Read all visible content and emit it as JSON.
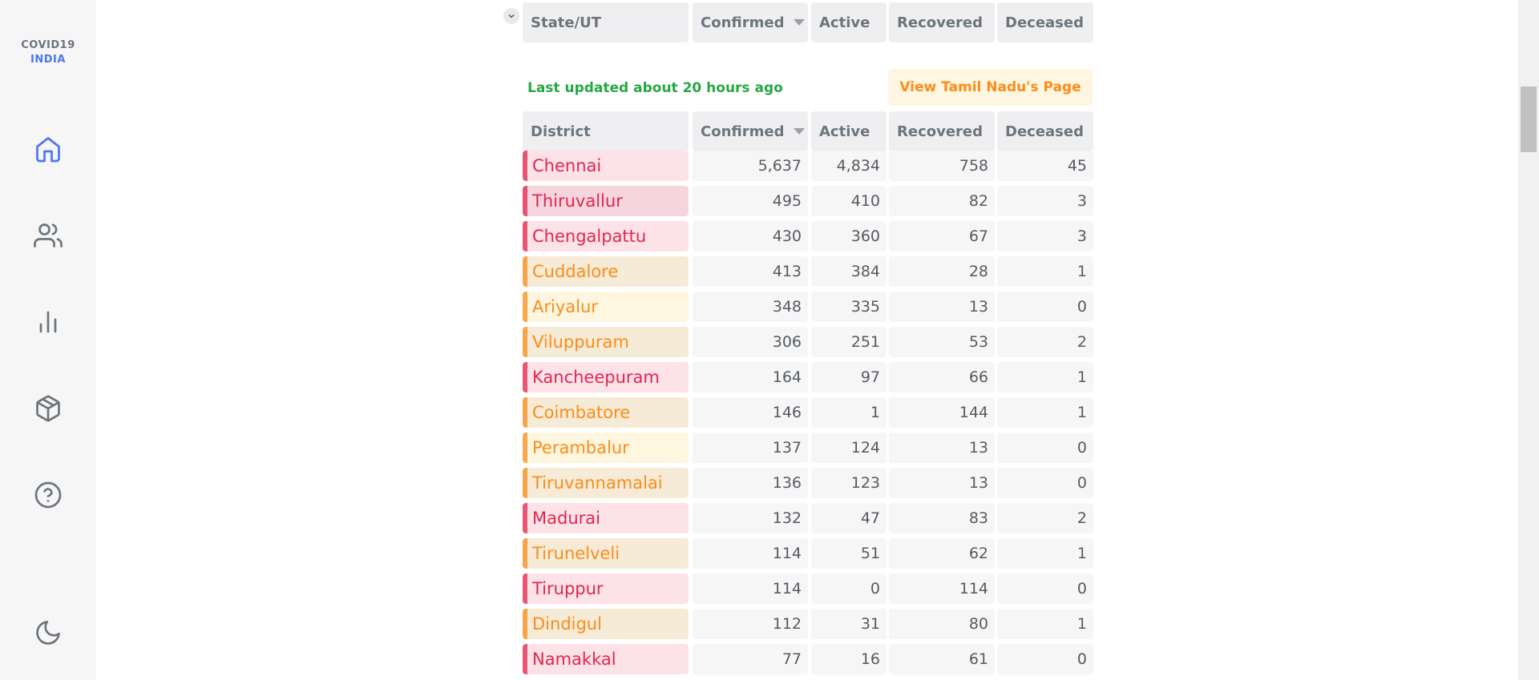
{
  "app": {
    "logo_line1": "COVID19",
    "logo_line2": "INDIA"
  },
  "sidebar": {
    "items": [
      {
        "icon": "home-icon"
      },
      {
        "icon": "users-icon"
      },
      {
        "icon": "bar-chart-icon"
      },
      {
        "icon": "box-icon"
      },
      {
        "icon": "help-circle-icon"
      },
      {
        "icon": "moon-icon"
      }
    ]
  },
  "state_table": {
    "headers": [
      "State/UT",
      "Confirmed",
      "Active",
      "Recovered",
      "Deceased"
    ]
  },
  "district_section": {
    "last_updated": "Last updated about 20 hours ago",
    "view_button": "View Tamil Nadu's Page",
    "headers": [
      "District",
      "Confirmed",
      "Active",
      "Recovered",
      "Deceased"
    ],
    "rows": [
      {
        "name": "Chennai",
        "confirmed": "5,637",
        "active": "4,834",
        "recovered": "758",
        "deceased": "45",
        "tone": "red",
        "tint": "#fde2e8"
      },
      {
        "name": "Thiruvallur",
        "confirmed": "495",
        "active": "410",
        "recovered": "82",
        "deceased": "3",
        "tone": "red",
        "tint": "#f6d6de"
      },
      {
        "name": "Chengalpattu",
        "confirmed": "430",
        "active": "360",
        "recovered": "67",
        "deceased": "3",
        "tone": "red",
        "tint": "#fde2e8"
      },
      {
        "name": "Cuddalore",
        "confirmed": "413",
        "active": "384",
        "recovered": "28",
        "deceased": "1",
        "tone": "orange",
        "tint": "#f6ebd6"
      },
      {
        "name": "Ariyalur",
        "confirmed": "348",
        "active": "335",
        "recovered": "13",
        "deceased": "0",
        "tone": "orange",
        "tint": "#fff6df"
      },
      {
        "name": "Viluppuram",
        "confirmed": "306",
        "active": "251",
        "recovered": "53",
        "deceased": "2",
        "tone": "orange",
        "tint": "#f6ebd6"
      },
      {
        "name": "Kancheepuram",
        "confirmed": "164",
        "active": "97",
        "recovered": "66",
        "deceased": "1",
        "tone": "red",
        "tint": "#fde2e8"
      },
      {
        "name": "Coimbatore",
        "confirmed": "146",
        "active": "1",
        "recovered": "144",
        "deceased": "1",
        "tone": "orange",
        "tint": "#f6ebd6"
      },
      {
        "name": "Perambalur",
        "confirmed": "137",
        "active": "124",
        "recovered": "13",
        "deceased": "0",
        "tone": "orange",
        "tint": "#fff6df"
      },
      {
        "name": "Tiruvannamalai",
        "confirmed": "136",
        "active": "123",
        "recovered": "13",
        "deceased": "0",
        "tone": "orange",
        "tint": "#f6ebd6"
      },
      {
        "name": "Madurai",
        "confirmed": "132",
        "active": "47",
        "recovered": "83",
        "deceased": "2",
        "tone": "red",
        "tint": "#fde2e8"
      },
      {
        "name": "Tirunelveli",
        "confirmed": "114",
        "active": "51",
        "recovered": "62",
        "deceased": "1",
        "tone": "orange",
        "tint": "#f6ebd6"
      },
      {
        "name": "Tiruppur",
        "confirmed": "114",
        "active": "0",
        "recovered": "114",
        "deceased": "0",
        "tone": "red",
        "tint": "#fde2e8"
      },
      {
        "name": "Dindigul",
        "confirmed": "112",
        "active": "31",
        "recovered": "80",
        "deceased": "1",
        "tone": "orange",
        "tint": "#f6ebd6"
      },
      {
        "name": "Namakkal",
        "confirmed": "77",
        "active": "16",
        "recovered": "61",
        "deceased": "0",
        "tone": "red",
        "tint": "#fde2e8"
      }
    ]
  },
  "colors": {
    "red": "#e2264d",
    "orange": "#fb8c1a",
    "green": "#28a745",
    "blue": "#4c75f2",
    "icon": "#6c757d"
  }
}
